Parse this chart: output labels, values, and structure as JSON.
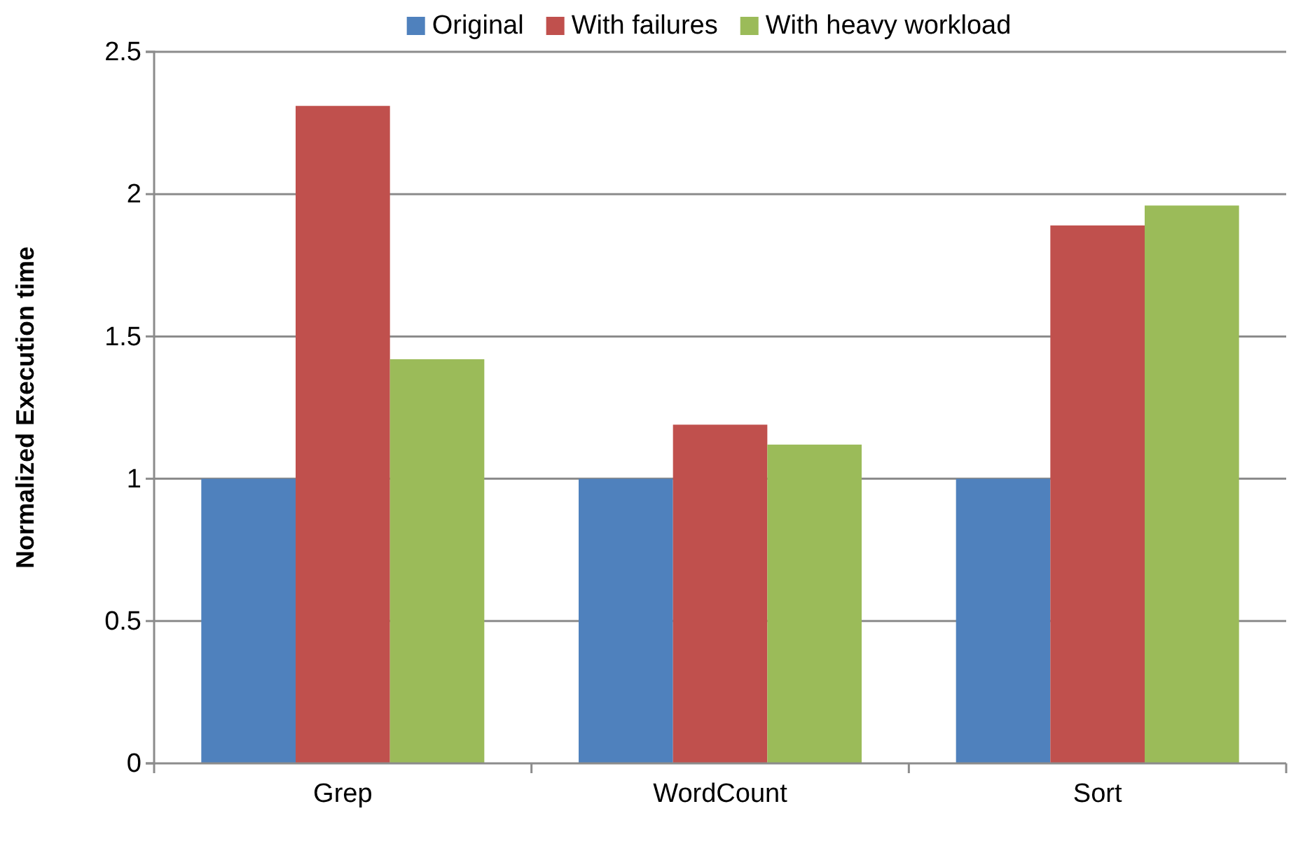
{
  "chart_data": {
    "type": "bar",
    "ylabel": "Normalized Execution time",
    "categories": [
      "Grep",
      "WordCount",
      "Sort"
    ],
    "series": [
      {
        "name": "Original",
        "color": "#4f81bd",
        "values": [
          1,
          1,
          1
        ]
      },
      {
        "name": "With failures",
        "color": "#c0504d",
        "values": [
          2.31,
          1.19,
          1.89
        ]
      },
      {
        "name": "With heavy workload",
        "color": "#9bbb59",
        "values": [
          1.42,
          1.12,
          1.96
        ]
      }
    ],
    "ylim": [
      0,
      2.5
    ],
    "yticks": [
      0,
      0.5,
      1,
      1.5,
      2,
      2.5
    ],
    "grid": "y",
    "legend": "top"
  }
}
